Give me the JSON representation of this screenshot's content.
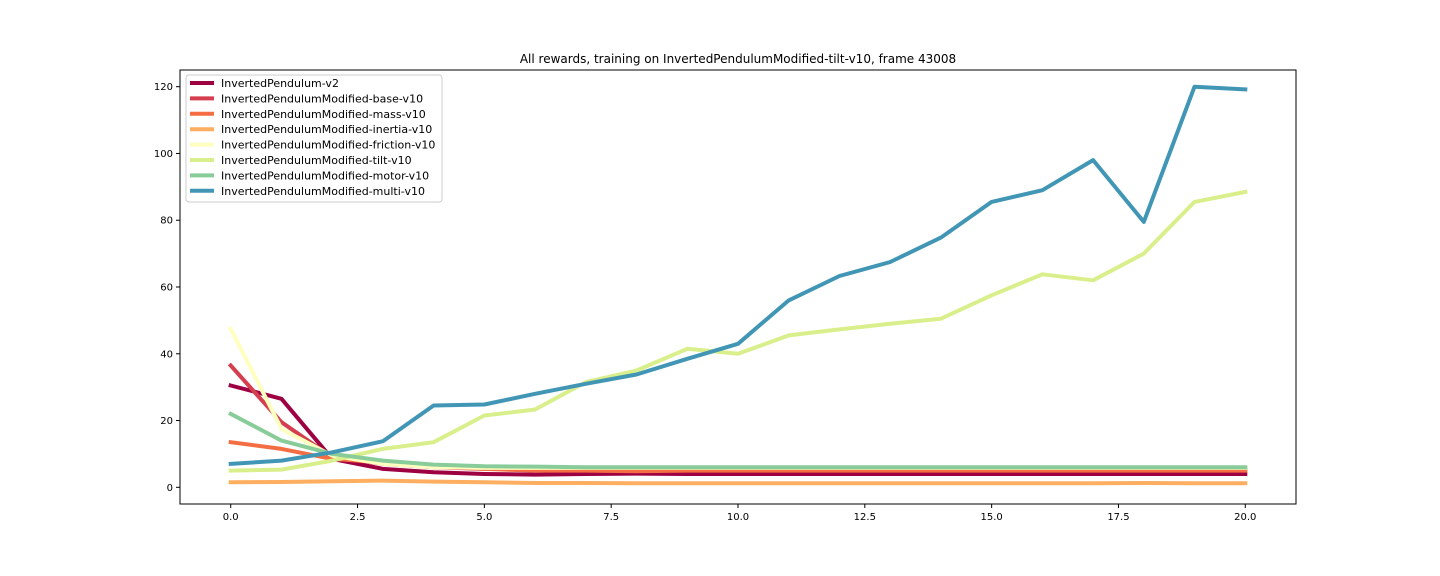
{
  "chart_data": {
    "type": "line",
    "title": "All rewards, training on InvertedPendulumModified-tilt-v10, frame 43008",
    "xlabel": "",
    "ylabel": "",
    "xlim": [
      -1.0,
      21.0
    ],
    "ylim": [
      -5,
      125
    ],
    "x_ticks": [
      0.0,
      2.5,
      5.0,
      7.5,
      10.0,
      12.5,
      15.0,
      17.5,
      20.0
    ],
    "x_tick_labels": [
      "0.0",
      "2.5",
      "5.0",
      "7.5",
      "10.0",
      "12.5",
      "15.0",
      "17.5",
      "20.0"
    ],
    "y_ticks": [
      0,
      20,
      40,
      60,
      80,
      100,
      120
    ],
    "y_tick_labels": [
      "0",
      "20",
      "40",
      "60",
      "80",
      "100",
      "120"
    ],
    "grid": false,
    "legend_position": "top-left",
    "x": [
      0,
      1,
      2,
      3,
      4,
      5,
      6,
      7,
      8,
      9,
      10,
      11,
      12,
      13,
      14,
      15,
      16,
      17,
      18,
      19,
      20
    ],
    "series": [
      {
        "name": "InvertedPendulum-v2",
        "color": "#9e0142",
        "values": [
          30.5,
          26.5,
          8.5,
          5.5,
          4.5,
          4.0,
          3.8,
          4.0,
          4.1,
          4.0,
          4.0,
          4.0,
          4.0,
          4.0,
          4.0,
          4.0,
          4.0,
          4.0,
          4.0,
          4.0,
          4.0
        ]
      },
      {
        "name": "InvertedPendulumModified-base-v10",
        "color": "#d53e4f",
        "values": [
          36.5,
          19.5,
          9.0,
          7.0,
          6.0,
          5.5,
          5.5,
          5.5,
          5.5,
          5.5,
          5.5,
          5.5,
          5.5,
          5.5,
          5.5,
          5.5,
          5.5,
          5.5,
          5.5,
          5.5,
          5.5
        ]
      },
      {
        "name": "InvertedPendulumModified-mass-v10",
        "color": "#f46d43",
        "values": [
          13.5,
          11.5,
          8.5,
          7.5,
          6.5,
          5.5,
          5.0,
          5.0,
          4.8,
          5.0,
          5.0,
          5.0,
          5.0,
          5.0,
          5.0,
          5.0,
          5.0,
          5.0,
          5.0,
          5.0,
          5.0
        ]
      },
      {
        "name": "InvertedPendulumModified-inertia-v10",
        "color": "#fdae61",
        "values": [
          1.5,
          1.6,
          1.8,
          2.0,
          1.7,
          1.5,
          1.3,
          1.3,
          1.2,
          1.2,
          1.2,
          1.2,
          1.2,
          1.2,
          1.2,
          1.2,
          1.2,
          1.2,
          1.3,
          1.2,
          1.2
        ]
      },
      {
        "name": "InvertedPendulumModified-friction-v10",
        "color": "#ffffbf",
        "values": [
          47.5,
          17.5,
          9.5,
          7.0,
          6.0,
          5.8,
          5.8,
          5.8,
          5.8,
          5.8,
          5.8,
          5.8,
          5.8,
          5.8,
          5.8,
          5.8,
          5.8,
          5.8,
          5.8,
          5.8,
          5.8
        ]
      },
      {
        "name": "InvertedPendulumModified-tilt-v10",
        "color": "#d9ef8b",
        "values": [
          5.0,
          5.3,
          8.0,
          11.5,
          13.5,
          21.5,
          23.3,
          31.5,
          35.0,
          41.5,
          40.0,
          45.5,
          47.3,
          49.0,
          50.5,
          57.5,
          63.8,
          62.0,
          70.0,
          85.5,
          88.5
        ]
      },
      {
        "name": "InvertedPendulumModified-motor-v10",
        "color": "#88cc99",
        "values": [
          22.0,
          14.0,
          10.0,
          8.0,
          6.8,
          6.3,
          6.2,
          6.0,
          6.0,
          6.0,
          6.0,
          6.0,
          6.0,
          6.0,
          6.0,
          6.0,
          6.0,
          6.0,
          6.0,
          6.0,
          6.0
        ]
      },
      {
        "name": "InvertedPendulumModified-multi-v10",
        "color": "#4296b5",
        "values": [
          7.0,
          8.0,
          10.5,
          13.8,
          24.5,
          24.8,
          28.0,
          31.0,
          33.8,
          38.5,
          43.0,
          56.0,
          63.3,
          67.5,
          74.8,
          85.5,
          89.0,
          98.0,
          79.5,
          120.0,
          119.2
        ]
      }
    ]
  }
}
